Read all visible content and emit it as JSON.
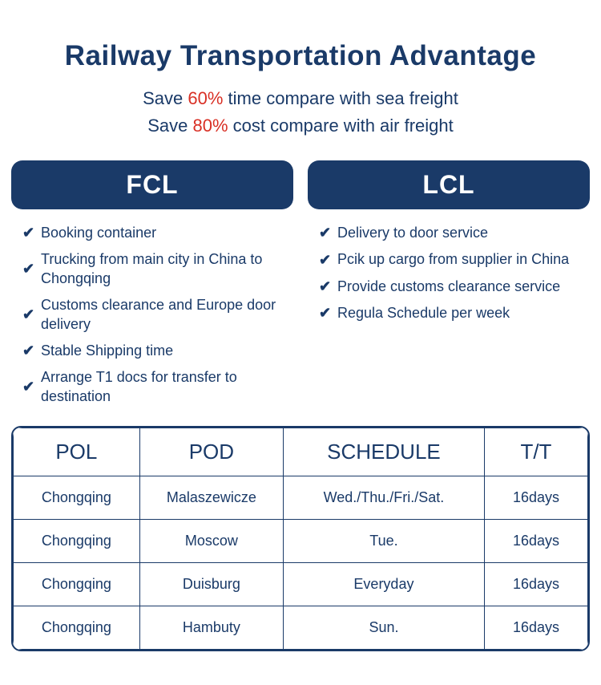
{
  "colors": {
    "navy": "#1a3a68",
    "red": "#d93025",
    "white": "#ffffff",
    "text": "#1a3a68",
    "border": "#1a3a68"
  },
  "title": "Railway Transportation Advantage",
  "subtitles": [
    {
      "pre": "Save ",
      "highlight": "60%",
      "post": " time compare with sea freight"
    },
    {
      "pre": "Save ",
      "highlight": "80%",
      "post": " cost compare with air freight"
    }
  ],
  "columns": [
    {
      "header": "FCL",
      "items": [
        "Booking container",
        "Trucking from main city in China to Chongqing",
        "Customs clearance and Europe door delivery",
        "Stable Shipping time",
        "Arrange  T1  docs for transfer to destination"
      ]
    },
    {
      "header": "LCL",
      "items": [
        "Delivery to door service",
        "Pcik up cargo from supplier in China",
        "Provide customs clearance service",
        "Regula Schedule per week"
      ]
    }
  ],
  "table": {
    "headers": [
      "POL",
      "POD",
      "SCHEDULE",
      "T/T"
    ],
    "rows": [
      [
        "Chongqing",
        "Malaszewicze",
        "Wed./Thu./Fri./Sat.",
        "16days"
      ],
      [
        "Chongqing",
        "Moscow",
        "Tue.",
        "16days"
      ],
      [
        "Chongqing",
        "Duisburg",
        "Everyday",
        "16days"
      ],
      [
        "Chongqing",
        "Hambuty",
        "Sun.",
        "16days"
      ]
    ]
  }
}
